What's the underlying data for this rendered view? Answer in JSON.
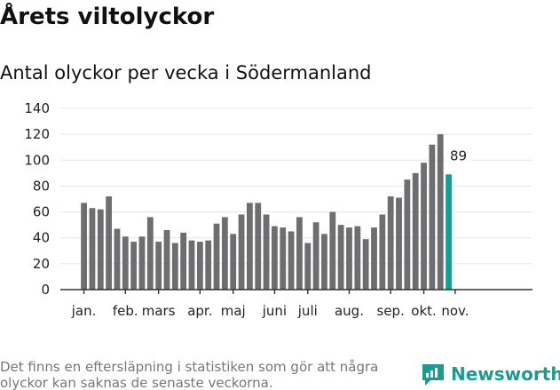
{
  "title": "Årets viltolyckor",
  "subtitle": "Antal olyckor per vecka i Södermanland",
  "footnote": "Det finns en eftersläpning i statistiken som gör att några olyckor kan saknas de senaste veckorna.",
  "brand": {
    "name": "Newsworthy",
    "color": "#1a9c92",
    "icon": "newsworthy-logo-icon"
  },
  "chart_data": {
    "type": "bar",
    "title": "Antal olyckor per vecka i Södermanland",
    "xlabel": "",
    "ylabel": "",
    "ylim": [
      0,
      140
    ],
    "yticks": [
      0,
      20,
      40,
      60,
      80,
      100,
      120,
      140
    ],
    "grid": true,
    "bar_color": "#6e6e70",
    "highlight_color": "#1a9c92",
    "values": [
      67,
      63,
      62,
      72,
      47,
      41,
      37,
      41,
      56,
      37,
      46,
      36,
      44,
      38,
      37,
      38,
      51,
      56,
      43,
      58,
      67,
      67,
      58,
      49,
      48,
      45,
      56,
      36,
      52,
      43,
      60,
      50,
      48,
      49,
      39,
      48,
      58,
      72,
      71,
      85,
      90,
      98,
      112,
      120,
      89
    ],
    "month_labels": [
      {
        "label": "jan.",
        "bar": 0
      },
      {
        "label": "feb.",
        "bar": 5
      },
      {
        "label": "mars",
        "bar": 9
      },
      {
        "label": "apr.",
        "bar": 14
      },
      {
        "label": "maj",
        "bar": 18
      },
      {
        "label": "juni",
        "bar": 23
      },
      {
        "label": "juli",
        "bar": 27
      },
      {
        "label": "aug.",
        "bar": 32
      },
      {
        "label": "sep.",
        "bar": 37
      },
      {
        "label": "okt.",
        "bar": 41
      },
      {
        "label": "nov.",
        "bar": 45
      }
    ],
    "annotation": {
      "text": "89",
      "bar": 44
    }
  }
}
